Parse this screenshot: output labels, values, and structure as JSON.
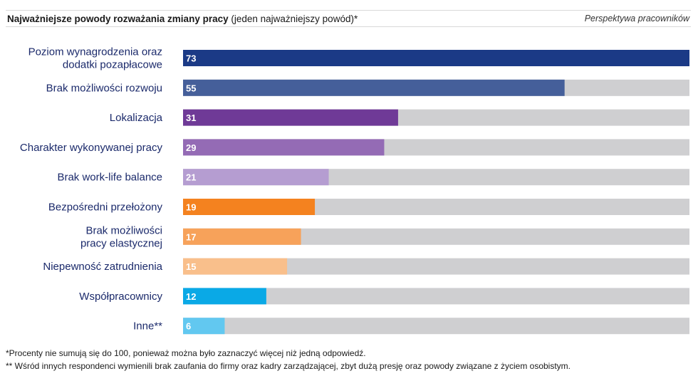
{
  "header": {
    "title_bold": "Najważniejsze powody rozważania zmiany pracy",
    "title_rest": " (jeden najważniejszy powód)*",
    "perspective": "Perspektywa pracowników"
  },
  "chart_data": {
    "type": "bar",
    "orientation": "horizontal",
    "max": 73,
    "track_color": "#cfcfd1",
    "label_color": "#1b2a6b",
    "categories": [
      {
        "label": [
          "Poziom wynagrodzenia oraz",
          "dodatki pozapłacowe"
        ],
        "value": 73,
        "color": "#1b3a86"
      },
      {
        "label": [
          "Brak możliwości rozwoju"
        ],
        "value": 55,
        "color": "#455f9a"
      },
      {
        "label": [
          "Lokalizacja"
        ],
        "value": 31,
        "color": "#6f3a97"
      },
      {
        "label": [
          "Charakter wykonywanej pracy"
        ],
        "value": 29,
        "color": "#946bb5"
      },
      {
        "label": [
          "Brak work-life balance"
        ],
        "value": 21,
        "color": "#b59dd1"
      },
      {
        "label": [
          "Bezpośredni przełożony"
        ],
        "value": 19,
        "color": "#f4821f"
      },
      {
        "label": [
          "Brak możliwości",
          "pracy elastycznej"
        ],
        "value": 17,
        "color": "#f7a25a"
      },
      {
        "label": [
          "Niepewność zatrudnienia"
        ],
        "value": 15,
        "color": "#f9bf8b"
      },
      {
        "label": [
          "Współpracownicy"
        ],
        "value": 12,
        "color": "#0aa9e6"
      },
      {
        "label": [
          "Inne**"
        ],
        "value": 6,
        "color": "#62c8f0"
      }
    ]
  },
  "footnotes": [
    "*Procenty nie sumują się do 100, ponieważ można było zaznaczyć więcej niż jedną odpowiedź.",
    "** Wśród innych respondenci wymienili brak zaufania do firmy oraz kadry zarządzającej, zbyt dużą presję oraz powody związane z życiem osobistym."
  ]
}
